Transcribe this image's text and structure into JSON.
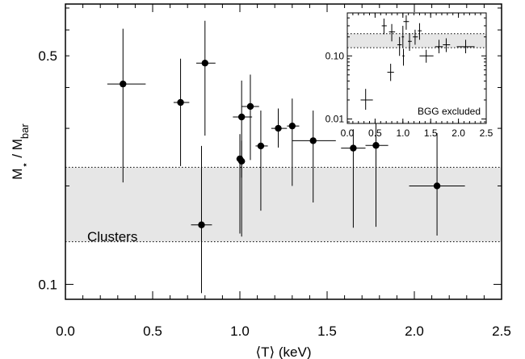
{
  "chart_data": [
    {
      "type": "scatter",
      "xlabel": "⟨T⟩ (keV)",
      "ylabel_main": "M",
      "ylabel_star": "⋆",
      "ylabel_sep": " / M",
      "ylabel_sub": "bar",
      "xlim": [
        0,
        2.5
      ],
      "ylim": [
        0.09,
        0.72
      ],
      "yscale": "log",
      "xticks": [
        "0.0",
        "0.5",
        "1.0",
        "1.5",
        "2.0",
        "2.5"
      ],
      "xtick_values": [
        0,
        0.5,
        1.0,
        1.5,
        2.0,
        2.5
      ],
      "yticks": [
        "0.1",
        "0.5"
      ],
      "ytick_values": [
        0.1,
        0.5
      ],
      "band": {
        "label": "Clusters",
        "low": 0.135,
        "high": 0.228,
        "color": "#e6e6e6"
      },
      "points": [
        {
          "x": 0.33,
          "xlo": 0.24,
          "xhi": 0.46,
          "y": 0.41,
          "ylo": 0.205,
          "yhi": 0.605
        },
        {
          "x": 0.66,
          "xlo": 0.62,
          "xhi": 0.71,
          "y": 0.36,
          "ylo": 0.23,
          "yhi": 0.49
        },
        {
          "x": 0.8,
          "xlo": 0.75,
          "xhi": 0.86,
          "y": 0.475,
          "ylo": 0.285,
          "yhi": 0.64
        },
        {
          "x": 0.78,
          "xlo": 0.72,
          "xhi": 0.84,
          "y": 0.152,
          "ylo": 0.094,
          "yhi": 0.265
        },
        {
          "x": 1.0,
          "xlo": 0.98,
          "xhi": 1.02,
          "y": 0.242,
          "ylo": 0.143,
          "yhi": 0.288
        },
        {
          "x": 1.01,
          "xlo": 0.99,
          "xhi": 1.03,
          "y": 0.238,
          "ylo": 0.14,
          "yhi": 0.275
        },
        {
          "x": 1.01,
          "xlo": 0.96,
          "xhi": 1.07,
          "y": 0.325,
          "ylo": 0.212,
          "yhi": 0.42
        },
        {
          "x": 1.06,
          "xlo": 1.01,
          "xhi": 1.11,
          "y": 0.35,
          "ylo": 0.24,
          "yhi": 0.438
        },
        {
          "x": 1.12,
          "xlo": 1.09,
          "xhi": 1.16,
          "y": 0.265,
          "ylo": 0.168,
          "yhi": 0.34
        },
        {
          "x": 1.22,
          "xlo": 1.18,
          "xhi": 1.27,
          "y": 0.3,
          "ylo": 0.262,
          "yhi": 0.345
        },
        {
          "x": 1.3,
          "xlo": 1.27,
          "xhi": 1.34,
          "y": 0.305,
          "ylo": 0.2,
          "yhi": 0.37
        },
        {
          "x": 1.42,
          "xlo": 1.3,
          "xhi": 1.55,
          "y": 0.275,
          "ylo": 0.178,
          "yhi": 0.34
        },
        {
          "x": 1.65,
          "xlo": 1.58,
          "xhi": 1.72,
          "y": 0.261,
          "ylo": 0.149,
          "yhi": 0.298
        },
        {
          "x": 1.78,
          "xlo": 1.72,
          "xhi": 1.85,
          "y": 0.266,
          "ylo": 0.15,
          "yhi": 0.34
        },
        {
          "x": 2.13,
          "xlo": 1.97,
          "xhi": 2.29,
          "y": 0.2,
          "ylo": 0.141,
          "yhi": 0.29
        }
      ]
    },
    {
      "type": "scatter",
      "note": "BGG excluded",
      "xlim": [
        0,
        2.5
      ],
      "ylim": [
        0.0085,
        0.48
      ],
      "yscale": "log",
      "xticks": [
        "0.0",
        "0.5",
        "1.0",
        "1.5",
        "2.0",
        "2.5"
      ],
      "xtick_values": [
        0,
        0.5,
        1.0,
        1.5,
        2.0,
        2.5
      ],
      "yticks": [
        "0.01",
        "0.10"
      ],
      "ytick_values": [
        0.01,
        0.1
      ],
      "band": {
        "low": 0.135,
        "high": 0.225,
        "color": "#e6e6e6"
      },
      "points": [
        {
          "x": 0.33,
          "xlo": 0.24,
          "xhi": 0.46,
          "y": 0.02,
          "ylo": 0.014,
          "yhi": 0.03
        },
        {
          "x": 0.66,
          "xlo": 0.62,
          "xhi": 0.71,
          "y": 0.3,
          "ylo": 0.22,
          "yhi": 0.39
        },
        {
          "x": 0.8,
          "xlo": 0.75,
          "xhi": 0.86,
          "y": 0.24,
          "ylo": 0.17,
          "yhi": 0.32
        },
        {
          "x": 0.78,
          "xlo": 0.72,
          "xhi": 0.84,
          "y": 0.055,
          "ylo": 0.04,
          "yhi": 0.075
        },
        {
          "x": 0.94,
          "xlo": 0.9,
          "xhi": 0.98,
          "y": 0.15,
          "ylo": 0.1,
          "yhi": 0.2
        },
        {
          "x": 1.0,
          "xlo": 0.98,
          "xhi": 1.02,
          "y": 0.2,
          "ylo": 0.135,
          "yhi": 0.3
        },
        {
          "x": 1.01,
          "xlo": 0.99,
          "xhi": 1.03,
          "y": 0.1,
          "ylo": 0.07,
          "yhi": 0.13
        },
        {
          "x": 1.06,
          "xlo": 1.01,
          "xhi": 1.11,
          "y": 0.35,
          "ylo": 0.26,
          "yhi": 0.44
        },
        {
          "x": 1.12,
          "xlo": 1.09,
          "xhi": 1.16,
          "y": 0.17,
          "ylo": 0.12,
          "yhi": 0.23
        },
        {
          "x": 1.22,
          "xlo": 1.18,
          "xhi": 1.27,
          "y": 0.2,
          "ylo": 0.15,
          "yhi": 0.26
        },
        {
          "x": 1.3,
          "xlo": 1.27,
          "xhi": 1.34,
          "y": 0.25,
          "ylo": 0.18,
          "yhi": 0.33
        },
        {
          "x": 1.42,
          "xlo": 1.3,
          "xhi": 1.55,
          "y": 0.1,
          "ylo": 0.078,
          "yhi": 0.125
        },
        {
          "x": 1.65,
          "xlo": 1.58,
          "xhi": 1.72,
          "y": 0.14,
          "ylo": 0.11,
          "yhi": 0.18
        },
        {
          "x": 1.78,
          "xlo": 1.72,
          "xhi": 1.85,
          "y": 0.15,
          "ylo": 0.115,
          "yhi": 0.19
        },
        {
          "x": 2.13,
          "xlo": 1.97,
          "xhi": 2.29,
          "y": 0.14,
          "ylo": 0.11,
          "yhi": 0.18
        }
      ]
    }
  ]
}
